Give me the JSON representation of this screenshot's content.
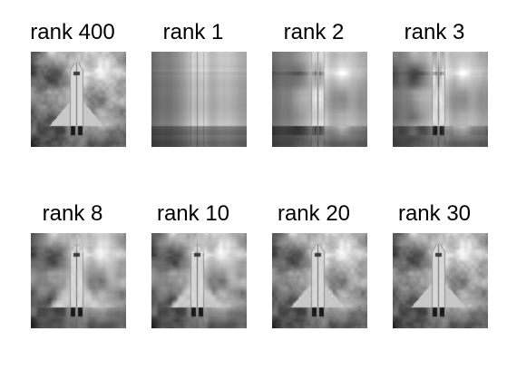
{
  "panels": [
    {
      "label": "rank 400",
      "rank": 400
    },
    {
      "label": "rank 1",
      "rank": 1
    },
    {
      "label": "rank 2",
      "rank": 2
    },
    {
      "label": "rank 3",
      "rank": 3
    },
    {
      "label": "rank 8",
      "rank": 8
    },
    {
      "label": "rank 10",
      "rank": 10
    },
    {
      "label": "rank 20",
      "rank": 20
    },
    {
      "label": "rank 30",
      "rank": 30
    }
  ]
}
